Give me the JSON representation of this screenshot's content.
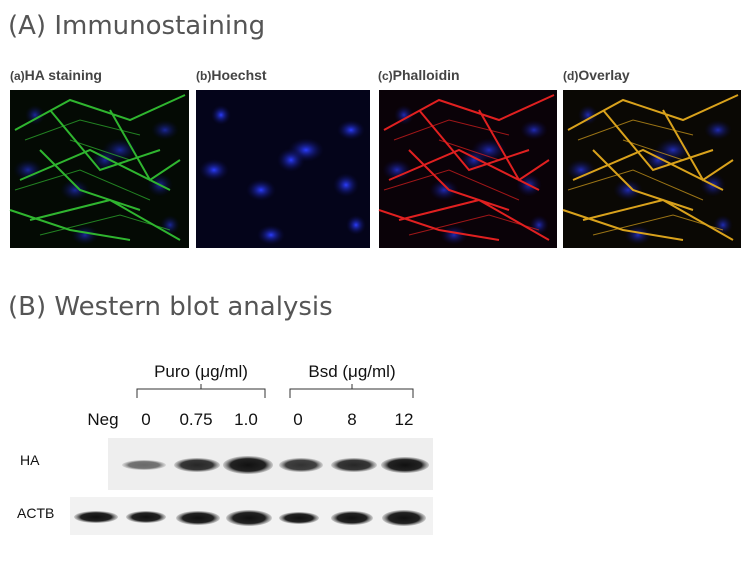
{
  "section_a": {
    "title": "(A) Immunostaining",
    "panels": [
      {
        "tag": "(a)",
        "label": "HA staining"
      },
      {
        "tag": "(b)",
        "label": "Hoechst"
      },
      {
        "tag": "(c)",
        "label": "Phalloidin"
      },
      {
        "tag": "(d)",
        "label": "Overlay"
      }
    ]
  },
  "section_b": {
    "title": "(B) Western blot analysis",
    "groups": [
      "Puro (μg/ml)",
      "Bsd (μg/ml)"
    ],
    "lanes": [
      "Neg",
      "0",
      "0.75",
      "1.0",
      "0",
      "8",
      "12"
    ],
    "rows": [
      "HA",
      "ACTB"
    ]
  }
}
